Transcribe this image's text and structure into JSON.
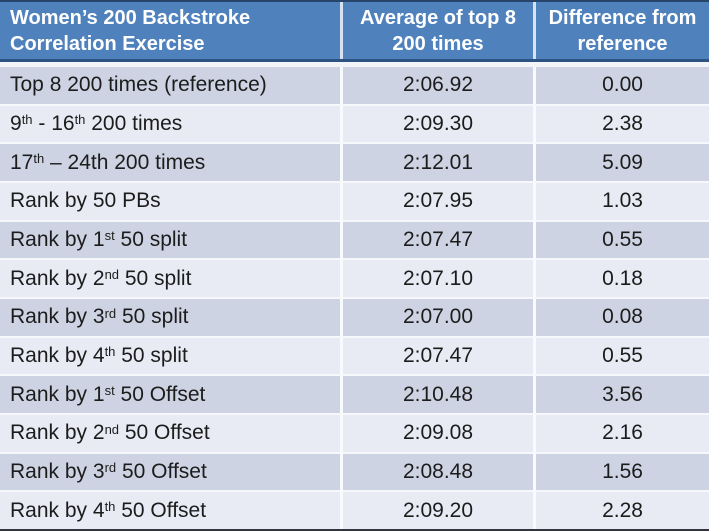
{
  "table": {
    "columns": [
      {
        "id": "exercise",
        "label_lines": [
          "Women’s 200 Backstroke",
          "Correlation Exercise"
        ]
      },
      {
        "id": "average",
        "label_lines": [
          "Average of top 8",
          "200 times"
        ]
      },
      {
        "id": "difference",
        "label_lines": [
          "Difference from",
          "reference"
        ]
      }
    ],
    "rows": [
      {
        "label_parts": [
          {
            "t": "Top 8 200 times (reference)"
          }
        ],
        "avg": "2:06.92",
        "diff": "0.00"
      },
      {
        "label_parts": [
          {
            "t": "9"
          },
          {
            "t": "th",
            "sup": true
          },
          {
            "t": " - 16"
          },
          {
            "t": "th",
            "sup": true
          },
          {
            "t": " 200 times"
          }
        ],
        "avg": "2:09.30",
        "diff": "2.38"
      },
      {
        "label_parts": [
          {
            "t": "17"
          },
          {
            "t": "th",
            "sup": true
          },
          {
            "t": " – 24th 200 times"
          }
        ],
        "avg": "2:12.01",
        "diff": "5.09"
      },
      {
        "label_parts": [
          {
            "t": "Rank by 50 PBs"
          }
        ],
        "avg": "2:07.95",
        "diff": "1.03"
      },
      {
        "label_parts": [
          {
            "t": "Rank by 1"
          },
          {
            "t": "st",
            "sup": true
          },
          {
            "t": " 50 split"
          }
        ],
        "avg": "2:07.47",
        "diff": "0.55"
      },
      {
        "label_parts": [
          {
            "t": "Rank by 2"
          },
          {
            "t": "nd",
            "sup": true
          },
          {
            "t": " 50 split"
          }
        ],
        "avg": "2:07.10",
        "diff": "0.18"
      },
      {
        "label_parts": [
          {
            "t": "Rank by 3"
          },
          {
            "t": "rd",
            "sup": true
          },
          {
            "t": " 50 split"
          }
        ],
        "avg": "2:07.00",
        "diff": "0.08"
      },
      {
        "label_parts": [
          {
            "t": "Rank by 4"
          },
          {
            "t": "th",
            "sup": true
          },
          {
            "t": " 50 split"
          }
        ],
        "avg": "2:07.47",
        "diff": "0.55"
      },
      {
        "label_parts": [
          {
            "t": "Rank by 1"
          },
          {
            "t": "st",
            "sup": true
          },
          {
            "t": " 50 Offset"
          }
        ],
        "avg": "2:10.48",
        "diff": "3.56"
      },
      {
        "label_parts": [
          {
            "t": "Rank by 2"
          },
          {
            "t": "nd",
            "sup": true
          },
          {
            "t": " 50 Offset"
          }
        ],
        "avg": "2:09.08",
        "diff": "2.16"
      },
      {
        "label_parts": [
          {
            "t": "Rank by 3"
          },
          {
            "t": "rd",
            "sup": true
          },
          {
            "t": " 50 Offset"
          }
        ],
        "avg": "2:08.48",
        "diff": "1.56"
      },
      {
        "label_parts": [
          {
            "t": "Rank by 4"
          },
          {
            "t": "th",
            "sup": true
          },
          {
            "t": " 50 Offset"
          }
        ],
        "avg": "2:09.20",
        "diff": "2.28"
      }
    ]
  },
  "colors": {
    "header_bg": "#4F81BD",
    "header_text": "#ffffff",
    "header_edge": "#2C5384",
    "header_sep": "#D9E2F0",
    "edge_dark": "#27456B",
    "edge_bottom": "#34343c",
    "gap_color": "#F2F4F8",
    "row_odd": "#CDD3E2",
    "row_even": "#E9EBF4",
    "row_sep": "#F6F8FB",
    "body_sep": "#F8FAFD",
    "body_text": "#1c1c1c"
  }
}
